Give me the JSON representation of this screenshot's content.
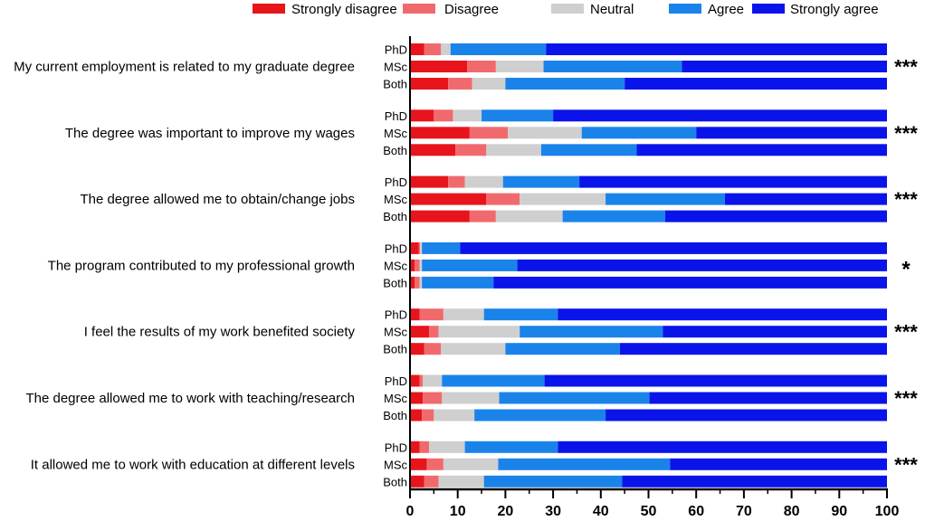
{
  "chart_data": {
    "type": "bar",
    "orientation": "horizontal",
    "stacked": true,
    "title": "",
    "xlabel": "",
    "ylabel": "",
    "xlim": [
      0,
      100
    ],
    "xticks": [
      0,
      10,
      20,
      30,
      40,
      50,
      60,
      70,
      80,
      90,
      100
    ],
    "grid": false,
    "legend_position": "top",
    "legend": [
      {
        "label": "Strongly disagree",
        "color": "#e8141c"
      },
      {
        "label": "Disagree",
        "color": "#f06a6d"
      },
      {
        "label": "Neutral",
        "color": "#cfcfcf"
      },
      {
        "label": "Agree",
        "color": "#1a83ea"
      },
      {
        "label": "Strongly agree",
        "color": "#0a14ea"
      }
    ],
    "groups": [
      "PhD",
      "MSc",
      "Both"
    ],
    "statements": [
      {
        "label": "My current employment is related to my graduate degree",
        "significance": "***",
        "rows": [
          [
            3,
            3.5,
            2,
            20,
            71.5
          ],
          [
            12,
            6,
            10,
            29,
            43
          ],
          [
            8,
            5,
            7,
            25,
            55
          ]
        ]
      },
      {
        "label": "The degree was important to improve my wages",
        "significance": "***",
        "rows": [
          [
            5,
            4,
            6,
            15,
            70
          ],
          [
            12.5,
            8,
            15.5,
            24,
            40
          ],
          [
            9.5,
            6.5,
            11.5,
            20,
            52.5
          ]
        ]
      },
      {
        "label": "The degree allowed me to obtain/change jobs",
        "significance": "***",
        "rows": [
          [
            8,
            3.5,
            8,
            16,
            64.5
          ],
          [
            16,
            7,
            18,
            25,
            34
          ],
          [
            12.5,
            5.5,
            14,
            21.5,
            46.5
          ]
        ]
      },
      {
        "label": "The program contributed to my professional growth",
        "significance": "*",
        "rows": [
          [
            1.8,
            0.3,
            0.4,
            8,
            89.5
          ],
          [
            1,
            1,
            0.5,
            20,
            77.5
          ],
          [
            1,
            1,
            0.5,
            15,
            82.5
          ]
        ]
      },
      {
        "label": "I feel the results of my work benefited society",
        "significance": "***",
        "rows": [
          [
            2,
            5,
            8.5,
            15.5,
            69
          ],
          [
            4,
            2,
            17,
            30,
            47
          ],
          [
            3,
            3.5,
            13.5,
            24,
            56
          ]
        ]
      },
      {
        "label": "The degree allowed me to work with teaching/research",
        "significance": "***",
        "rows": [
          [
            2,
            0.7,
            4,
            21.5,
            71.8
          ],
          [
            2.7,
            4,
            12,
            31.5,
            49.8
          ],
          [
            2.5,
            2.5,
            8.5,
            27.5,
            59
          ]
        ]
      },
      {
        "label": "It allowed me to work with education at different levels",
        "significance": "***",
        "rows": [
          [
            2,
            2,
            7.5,
            19.5,
            69
          ],
          [
            3.5,
            3.5,
            11.5,
            36,
            45.5
          ],
          [
            3,
            3,
            9.5,
            29,
            55.5
          ]
        ]
      }
    ]
  }
}
